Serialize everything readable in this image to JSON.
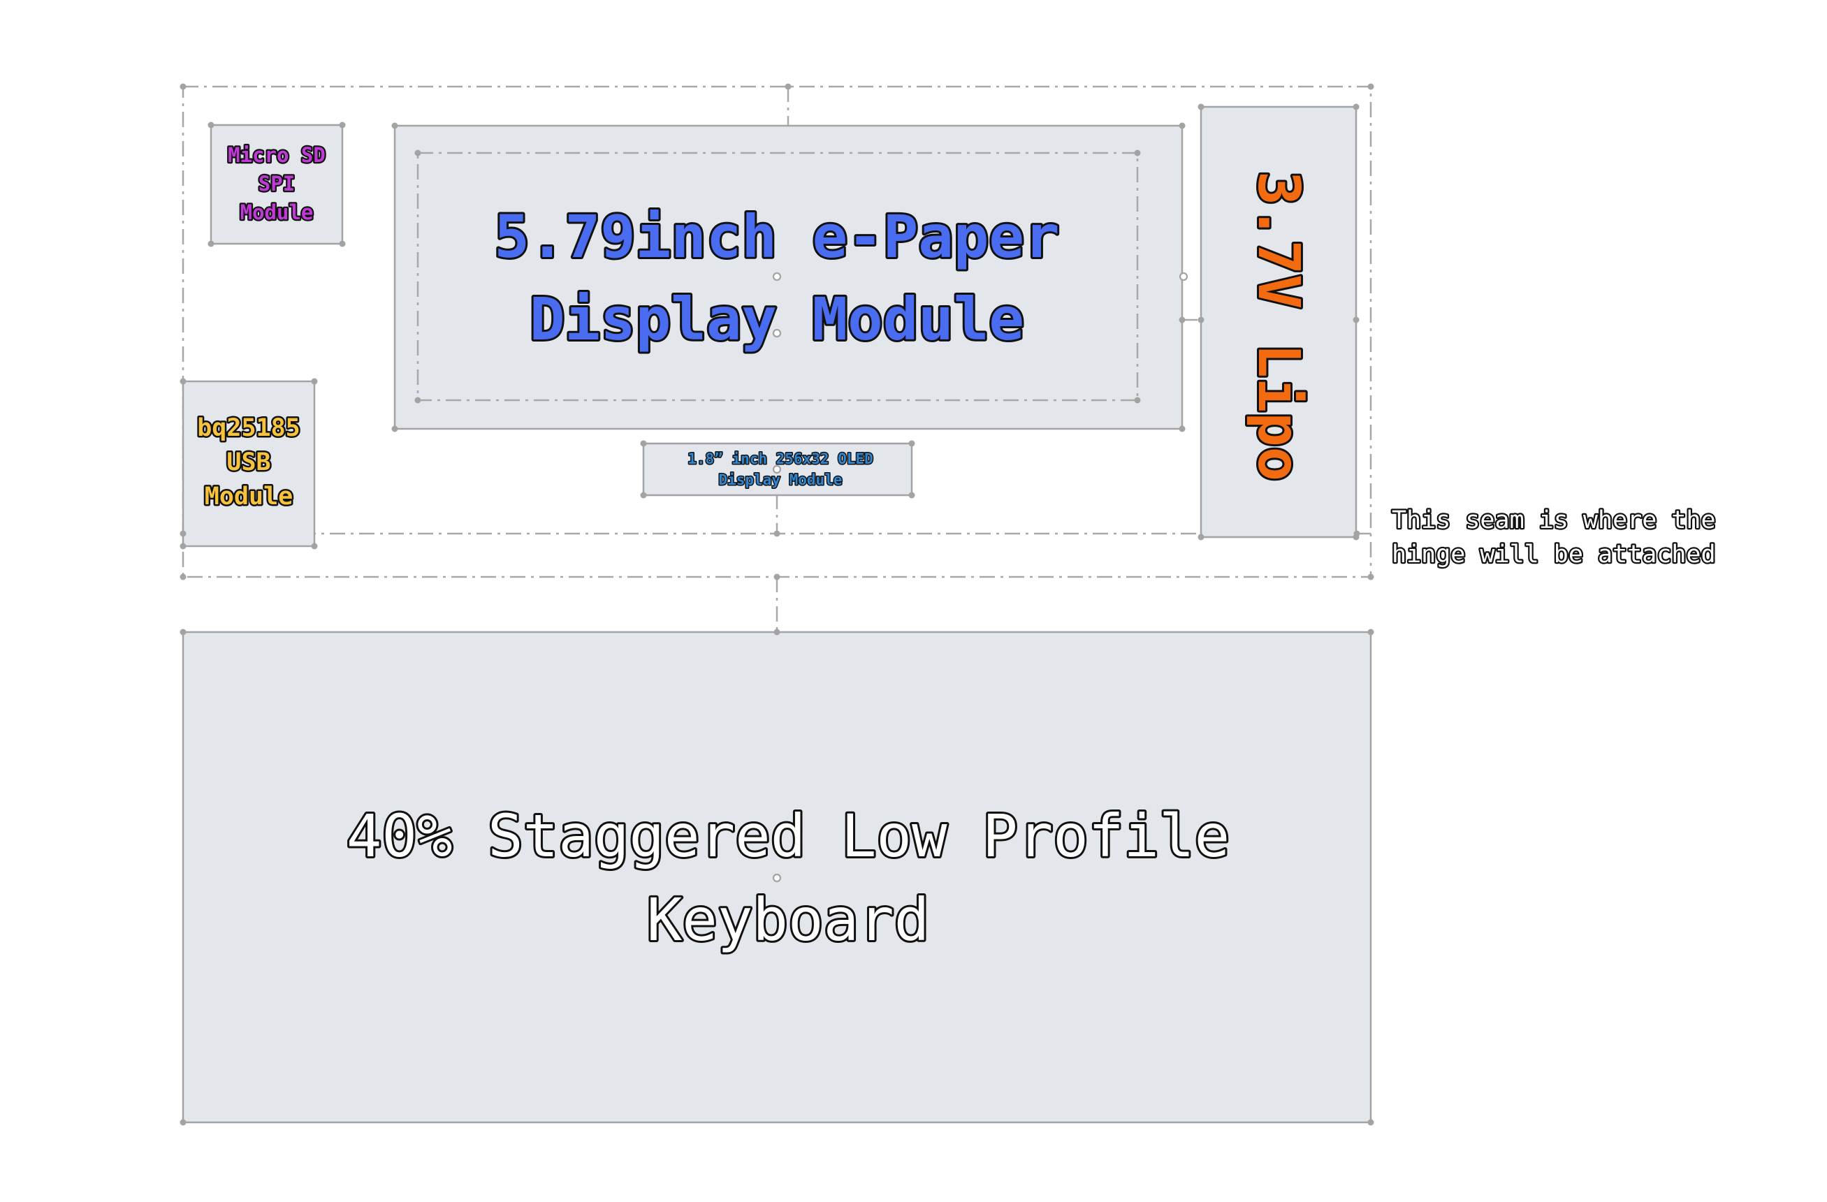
{
  "modules": {
    "epaper": {
      "line1": "5.79inch e-Paper",
      "line2": "Display Module",
      "color": "#4a6cf0"
    },
    "microsd": {
      "line1": "Micro SD",
      "line2": "SPI",
      "line3": "Module",
      "color": "#c13ad8"
    },
    "bq": {
      "line1": "bq25185",
      "line2": "USB",
      "line3": "Module",
      "color": "#f7c33c"
    },
    "oled": {
      "line1": "1.8” inch 256x32 OLED",
      "line2": "Display Module",
      "color": "#2f86cf"
    },
    "lipo": {
      "label": "3.7V Lipo",
      "color": "#f26b10"
    },
    "keyboard": {
      "line1": "40% Staggered Low Profile",
      "line2": "Keyboard",
      "color": "#ffffff"
    }
  },
  "annotation": {
    "line1": "This seam is where the",
    "line2": "hinge will be attached"
  }
}
